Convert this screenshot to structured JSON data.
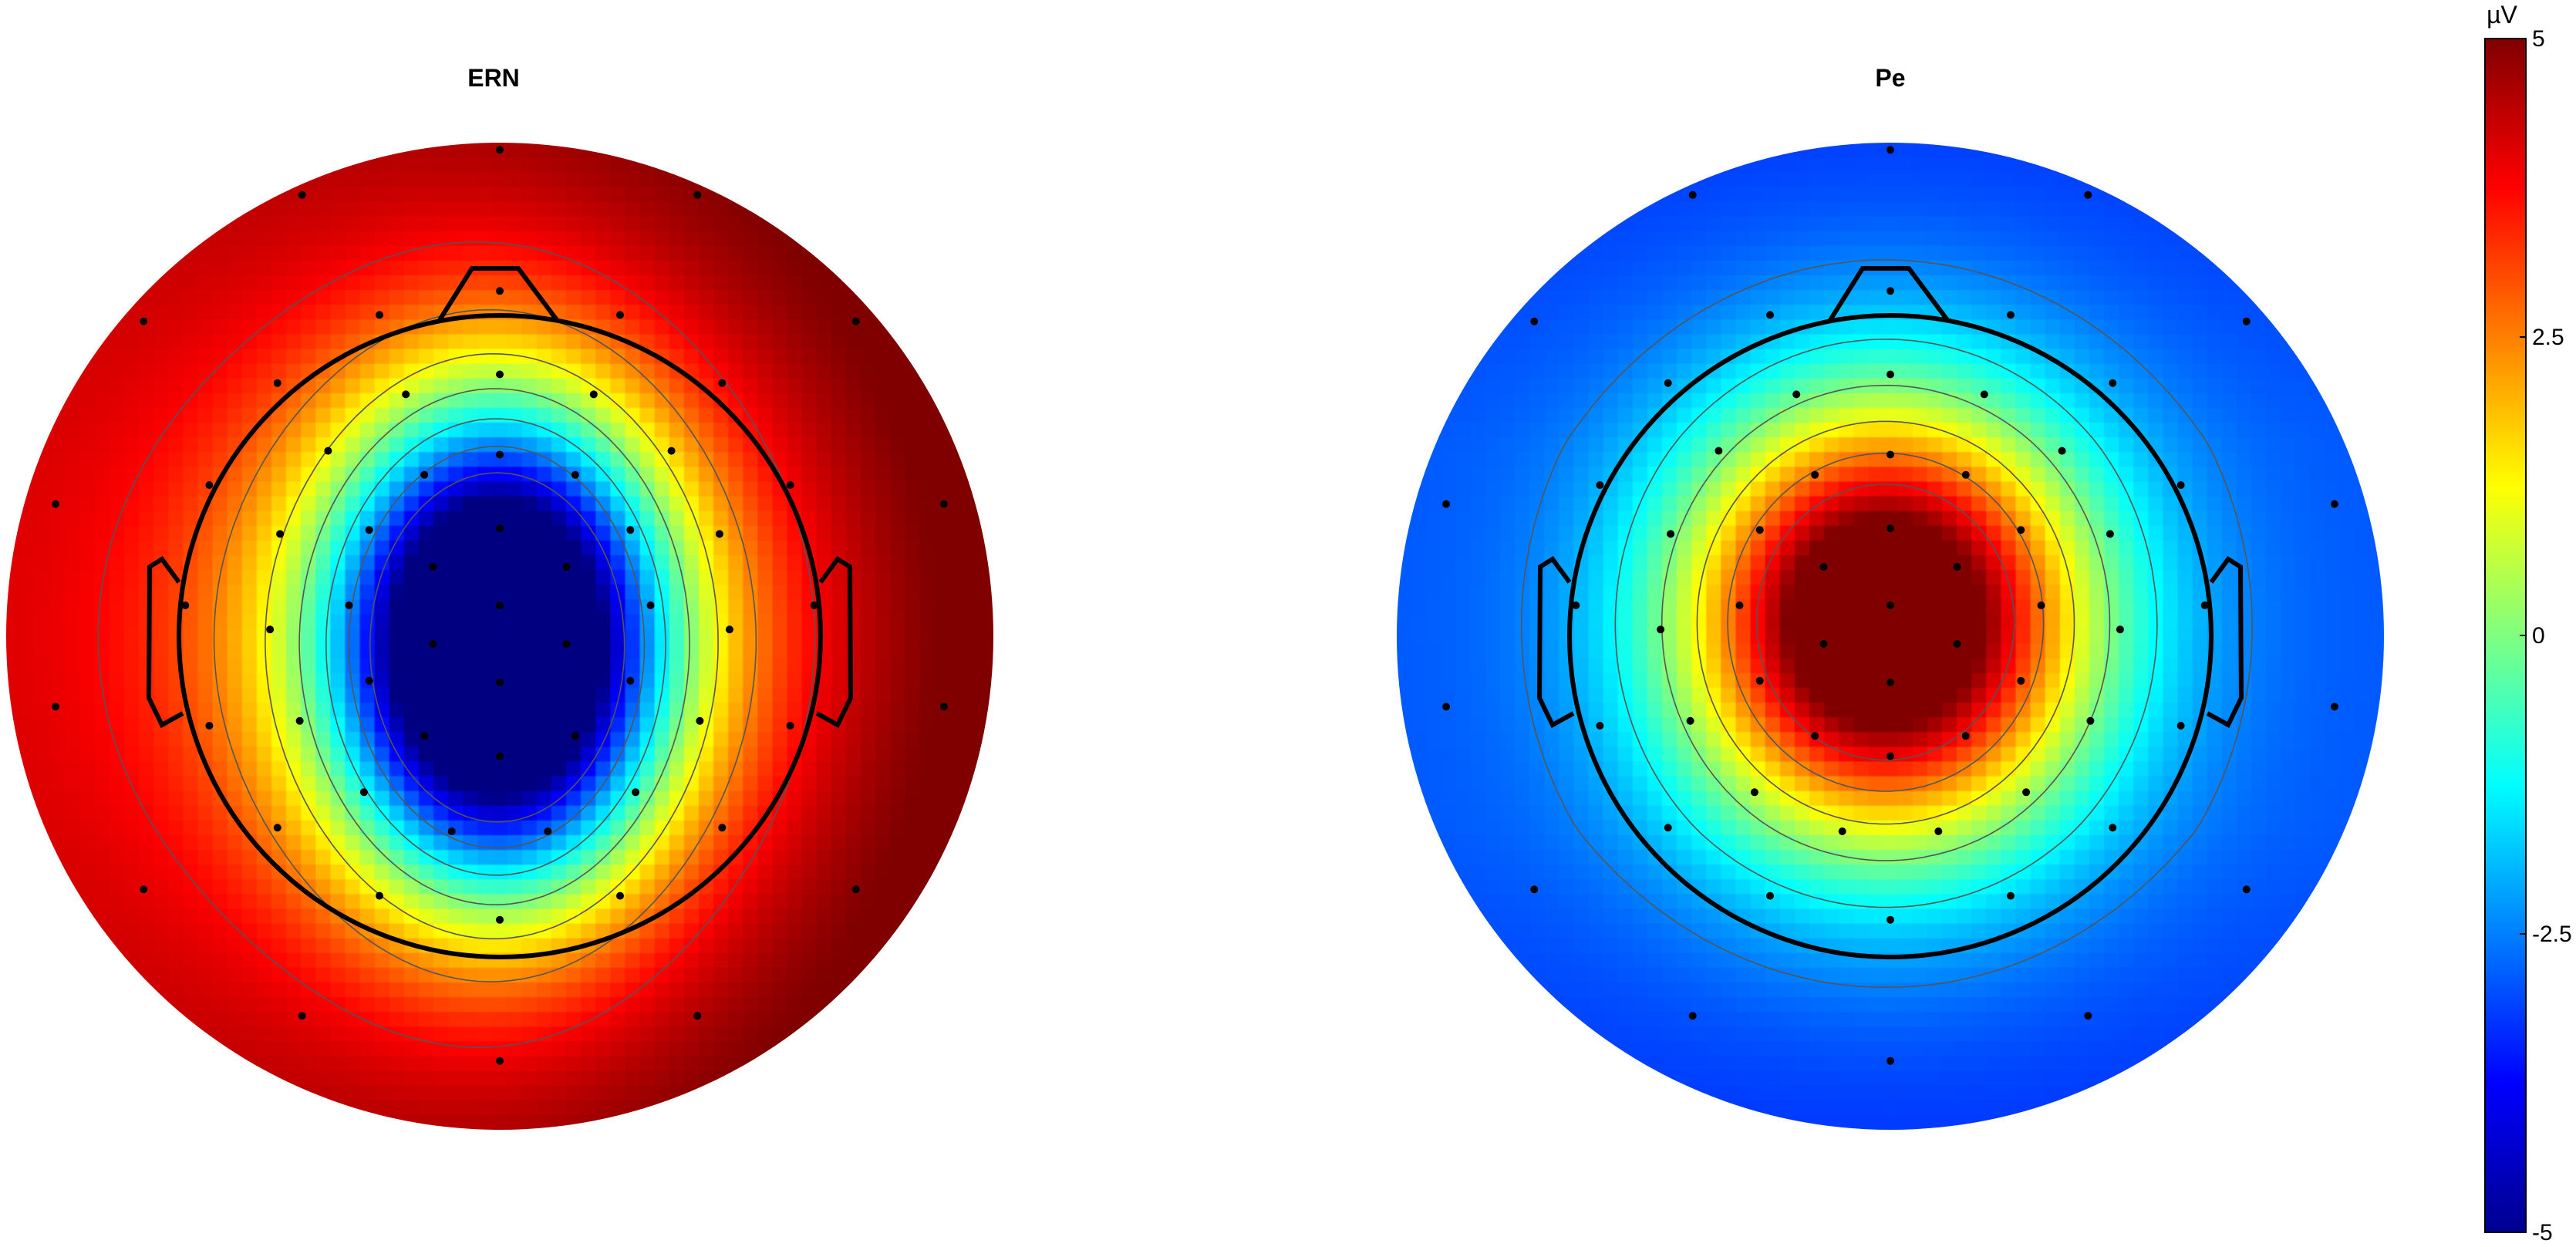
{
  "chart_data": {
    "type": "heatmap",
    "subtype": "eeg-topographic-map",
    "colormap": "jet",
    "clim": [
      -5,
      5
    ],
    "colorbar": {
      "unit": "µV",
      "ticks": [
        5,
        2.5,
        0,
        -2.5,
        -5
      ],
      "tick_labels": [
        "5",
        "2.5",
        "0",
        "-2.5",
        "-5"
      ],
      "placement": "right"
    },
    "contour_levels_uV": [
      -3.75,
      -2.5,
      -1.25,
      0,
      1.25,
      2.5,
      3.75
    ],
    "maps": [
      {
        "title": "ERN",
        "peak_location": "fronto-central midline",
        "peak_value_uV": -5,
        "periphery_value_uV": 4,
        "description_of_values": "negative maximum at FCz/Cz, positive at the scalp periphery"
      },
      {
        "title": "Pe",
        "peak_location": "fronto-central midline",
        "peak_value_uV": 4.5,
        "periphery_value_uV": -2.5,
        "description_of_values": "positive maximum at FCz, negative at the scalp periphery"
      }
    ],
    "electrode_count": 64
  }
}
